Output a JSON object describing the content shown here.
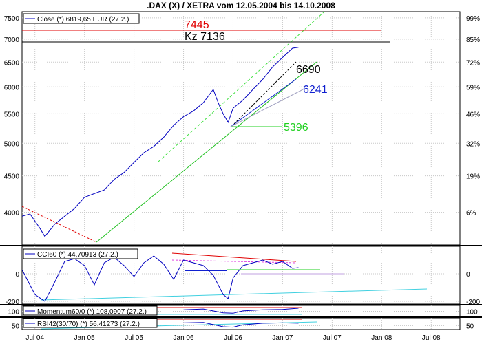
{
  "chart_data": [
    {
      "panel": "price",
      "type": "line",
      "title": ".DAX (X) / XETRA vom 12.05.2004 bis 14.10.2008",
      "legend": "Close (*) 6819,65 EUR (27.2.)",
      "x_ticks": [
        "Jul 04",
        "Jan 05",
        "Jul 05",
        "Jan 06",
        "Jul 06",
        "Jan 07",
        "Jul 07",
        "Jan 08",
        "Jul 08"
      ],
      "y_ticks": [
        "7500",
        "7000",
        "6500",
        "6000",
        "5500",
        "5000",
        "4500",
        "4000"
      ],
      "y_ticks_right": [
        "99%",
        "85%",
        "72%",
        "59%",
        "46%",
        "32%",
        "19%",
        "6%"
      ],
      "ylim": [
        3600,
        7650
      ],
      "annotations": [
        {
          "text": "7445",
          "color": "#e00000"
        },
        {
          "text": "Kz 7136",
          "color": "#000000"
        },
        {
          "text": "6690",
          "color": "#000000"
        },
        {
          "text": "6241",
          "color": "#1020d0"
        },
        {
          "text": "5396",
          "color": "#20d020"
        }
      ],
      "series": [
        {
          "color": "#0000c0",
          "x": [
            2004.37,
            2004.45,
            2004.55,
            2004.6,
            2004.7,
            2004.8,
            2004.9,
            2005.0,
            2005.1,
            2005.2,
            2005.3,
            2005.4,
            2005.5,
            2005.6,
            2005.7,
            2005.8,
            2005.9,
            2006.0,
            2006.1,
            2006.2,
            2006.3,
            2006.35,
            2006.4,
            2006.45,
            2006.5,
            2006.6,
            2006.7,
            2006.8,
            2006.9,
            2007.0,
            2007.1,
            2007.16
          ],
          "y": [
            3950,
            3980,
            3800,
            3700,
            3850,
            3950,
            4050,
            4200,
            4250,
            4300,
            4450,
            4550,
            4700,
            4850,
            4950,
            5100,
            5300,
            5450,
            5550,
            5700,
            5950,
            5700,
            5500,
            5350,
            5600,
            5750,
            5950,
            6150,
            6400,
            6600,
            6800,
            6820
          ]
        }
      ]
    },
    {
      "panel": "cci",
      "type": "line",
      "legend": "CCI60 (*) 44,70913 (27.2.)",
      "y_ticks": [
        "0",
        "-200"
      ],
      "y_ticks_right": [
        "0",
        "-200"
      ],
      "ylim": [
        -220,
        200
      ],
      "series": [
        {
          "color": "#0000c0",
          "x": [
            2004.37,
            2004.5,
            2004.6,
            2004.7,
            2004.8,
            2004.9,
            2005.0,
            2005.1,
            2005.2,
            2005.3,
            2005.4,
            2005.5,
            2005.6,
            2005.7,
            2005.8,
            2005.9,
            2006.0,
            2006.1,
            2006.2,
            2006.3,
            2006.35,
            2006.4,
            2006.45,
            2006.5,
            2006.6,
            2006.7,
            2006.8,
            2006.9,
            2007.0,
            2007.1,
            2007.16
          ],
          "y": [
            30,
            -150,
            -200,
            -60,
            90,
            110,
            60,
            -80,
            80,
            120,
            60,
            -20,
            80,
            130,
            70,
            -40,
            100,
            80,
            60,
            -10,
            -80,
            -150,
            -180,
            -30,
            60,
            80,
            100,
            70,
            90,
            40,
            45
          ]
        }
      ]
    },
    {
      "panel": "momentum",
      "type": "line",
      "legend": "Momentum60/0 (*) 108,0907 (27.2.)",
      "y_ticks": [
        "100"
      ],
      "y_ticks_right": [
        "100"
      ],
      "ylim": [
        85,
        115
      ],
      "series": [
        {
          "color": "#0000c0",
          "x": [
            2006.0,
            2006.2,
            2006.4,
            2006.5,
            2006.6,
            2006.8,
            2007.0,
            2007.16
          ],
          "y": [
            104,
            106,
            96,
            95,
            101,
            104,
            105,
            108
          ]
        }
      ]
    },
    {
      "panel": "rsi",
      "type": "line",
      "legend": "RSI42(30/70) (*) 56,41273 (27.2.)",
      "y_ticks": [
        "50"
      ],
      "y_ticks_right": [
        "50"
      ],
      "ylim": [
        40,
        70
      ],
      "series": [
        {
          "color": "#0000c0",
          "x": [
            2006.0,
            2006.2,
            2006.4,
            2006.5,
            2006.6,
            2006.8,
            2007.0,
            2007.16
          ],
          "y": [
            57,
            58,
            47,
            46,
            52,
            56,
            57,
            56
          ]
        }
      ]
    }
  ]
}
